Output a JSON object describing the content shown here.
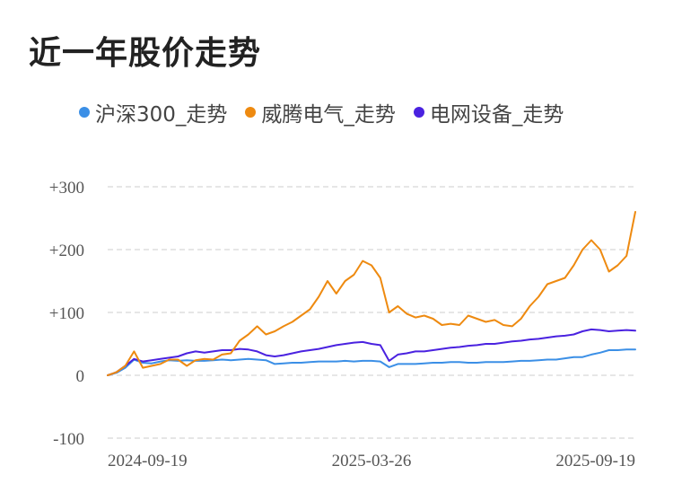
{
  "title": "近一年股价走势",
  "colors": {
    "hs300": "#3b8fe6",
    "weiteng": "#ee8a10",
    "grid": "#dddddd"
  },
  "chart_data": {
    "type": "line",
    "xlabel": "",
    "ylabel": "",
    "ylim": [
      -100,
      300
    ],
    "grid": true,
    "legend_position": "top",
    "yticks": [
      {
        "value": 300,
        "label": "+300"
      },
      {
        "value": 200,
        "label": "+200"
      },
      {
        "value": 100,
        "label": "+100"
      },
      {
        "value": 0,
        "label": "0"
      },
      {
        "value": -100,
        "label": "-100"
      }
    ],
    "xticks": [
      {
        "index": 0,
        "label": "2024-09-19"
      },
      {
        "index": 30,
        "label": "2025-03-26"
      },
      {
        "index": 60,
        "label": "2025-09-19"
      }
    ],
    "series": [
      {
        "name": "沪深300_走势",
        "color": "#3b8fe6",
        "values": [
          0,
          4,
          12,
          25,
          20,
          19,
          22,
          24,
          23,
          24,
          23,
          23,
          24,
          25,
          24,
          25,
          26,
          25,
          24,
          18,
          19,
          20,
          20,
          21,
          22,
          22,
          22,
          23,
          22,
          23,
          23,
          22,
          13,
          18,
          18,
          18,
          19,
          20,
          20,
          21,
          21,
          20,
          20,
          21,
          21,
          21,
          22,
          23,
          23,
          24,
          25,
          25,
          27,
          29,
          29,
          33,
          36,
          40,
          40,
          41,
          41
        ]
      },
      {
        "name": "威腾电气_走势",
        "color": "#ee8a10",
        "values": [
          0,
          5,
          15,
          38,
          12,
          15,
          18,
          25,
          25,
          15,
          24,
          26,
          25,
          33,
          35,
          55,
          65,
          78,
          65,
          70,
          78,
          85,
          95,
          105,
          125,
          150,
          130,
          150,
          160,
          182,
          175,
          155,
          100,
          110,
          98,
          92,
          95,
          90,
          80,
          82,
          80,
          95,
          90,
          85,
          88,
          80,
          78,
          90,
          110,
          125,
          145,
          150,
          155,
          175,
          200,
          215,
          200,
          165,
          175,
          190,
          260
        ]
      },
      {
        "name": "电网设备_走势",
        "color": "#4a22e0",
        "values": [
          0,
          5,
          15,
          26,
          22,
          24,
          26,
          28,
          30,
          35,
          38,
          36,
          38,
          40,
          40,
          42,
          41,
          38,
          32,
          30,
          32,
          35,
          38,
          40,
          42,
          45,
          48,
          50,
          52,
          53,
          50,
          48,
          23,
          33,
          35,
          38,
          38,
          40,
          42,
          44,
          45,
          47,
          48,
          50,
          50,
          52,
          54,
          55,
          57,
          58,
          60,
          62,
          63,
          65,
          70,
          73,
          72,
          70,
          71,
          72,
          71
        ]
      }
    ]
  }
}
